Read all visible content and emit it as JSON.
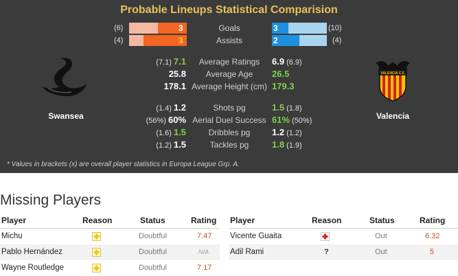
{
  "panel": {
    "title": "Probable Lineups Statistical Comparision",
    "footnote": "* Values in brackets (x) are overall player statistics in Europa League Grp. A."
  },
  "teams": {
    "home": {
      "name": "Swansea",
      "logo_icon": "swan-crest-icon"
    },
    "away": {
      "name": "Valencia",
      "logo_icon": "bat-crest-icon",
      "logo_text": "VALENCIA C.F."
    }
  },
  "bars": [
    {
      "label": "Goals",
      "home_bracket": "(6)",
      "home_value": "3",
      "home_fill": 0.5,
      "away_bracket": "(10)",
      "away_value": "3",
      "away_fill": 0.3
    },
    {
      "label": "Assists",
      "home_bracket": "(4)",
      "home_value": "3",
      "home_fill": 0.75,
      "away_bracket": "(4)",
      "away_value": "2",
      "away_fill": 0.5
    }
  ],
  "stats": [
    {
      "label": "Average Ratings",
      "home_bracket": "(7.1)",
      "home_value": "7.1",
      "home_better": true,
      "away_value": "6.9",
      "away_bracket": "(6.9)",
      "away_better": false
    },
    {
      "label": "Average Age",
      "home_bracket": "",
      "home_value": "25.8",
      "home_better": false,
      "away_value": "26.5",
      "away_bracket": "",
      "away_better": true
    },
    {
      "label": "Average Height (cm)",
      "home_bracket": "",
      "home_value": "178.1",
      "home_better": false,
      "away_value": "179.3",
      "away_bracket": "",
      "away_better": true
    },
    {
      "label": "Shots pg",
      "home_bracket": "(1.4)",
      "home_value": "1.2",
      "home_better": false,
      "away_value": "1.5",
      "away_bracket": "(1.8)",
      "away_better": true
    },
    {
      "label": "Aerial Duel Success",
      "home_bracket": "(56%)",
      "home_value": "60%",
      "home_better": false,
      "away_value": "61%",
      "away_bracket": "(50%)",
      "away_better": true
    },
    {
      "label": "Dribbles pg",
      "home_bracket": "(1.6)",
      "home_value": "1.5",
      "home_better": true,
      "away_value": "1.2",
      "away_bracket": "(1.2)",
      "away_better": false
    },
    {
      "label": "Tackles pg",
      "home_bracket": "(1.2)",
      "home_value": "1.5",
      "home_better": false,
      "away_value": "1.8",
      "away_bracket": "(1.9)",
      "away_better": true
    }
  ],
  "colors": {
    "panel_bg": "#3b3b3b",
    "title": "#e8c15a",
    "better_value": "#7fd14b",
    "normal_value": "#ffffff",
    "home_bar_light": "#f3b9a3",
    "home_bar_fill": "#f26522",
    "away_bar_light": "#a9d4ee",
    "away_bar_fill": "#1e90e0",
    "rating": "#c0531e"
  },
  "missing": {
    "title": "Missing Players",
    "headers": {
      "player": "Player",
      "reason": "Reason",
      "status": "Status",
      "rating": "Rating"
    },
    "home": [
      {
        "player": "Michu",
        "reason_icon": "injury-doubtful-icon",
        "status": "Doubtful",
        "rating": "7.47"
      },
      {
        "player": "Pablo Hernández",
        "reason_icon": "injury-doubtful-icon",
        "status": "Doubtful",
        "rating": "N/A"
      },
      {
        "player": "Wayne Routledge",
        "reason_icon": "injury-doubtful-icon",
        "status": "Doubtful",
        "rating": "7.17"
      }
    ],
    "away": [
      {
        "player": "Vicente Guaita",
        "reason_icon": "injury-cross-icon",
        "status": "Out",
        "rating": "6.32"
      },
      {
        "player": "Adil Rami",
        "reason_icon": "unknown-reason-icon",
        "reason_text": "?",
        "status": "Out",
        "rating": "5"
      }
    ]
  }
}
